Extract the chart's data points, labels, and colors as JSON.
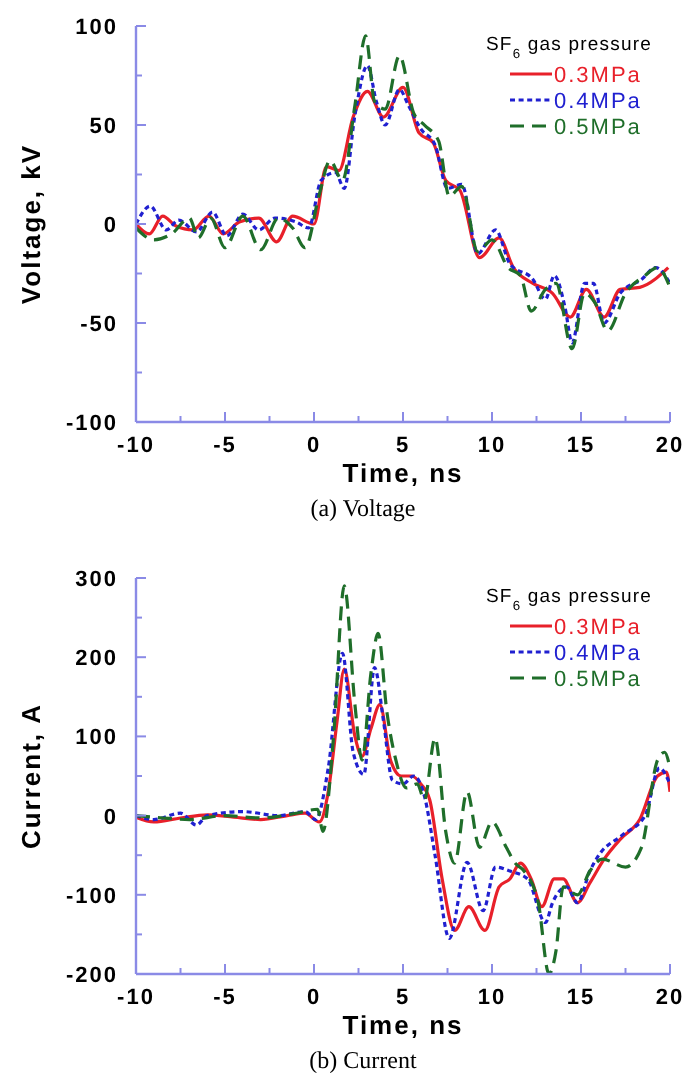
{
  "chart_data": [
    {
      "type": "line",
      "xlabel": "Time, ns",
      "ylabel": "Voltage, kV",
      "legend_title": "SF$_{6}$ gas pressure",
      "legend": "top right",
      "annotations": [
        "(a) Voltage"
      ],
      "xlim": [
        -10,
        20
      ],
      "ylim": [
        -100,
        100
      ],
      "xticks": [
        -10,
        {
          "value": -7.5,
          "label": null
        },
        -5,
        {
          "value": -2.5,
          "label": null
        },
        0,
        {
          "value": 2.5,
          "label": null
        },
        5,
        {
          "value": 7.5,
          "label": null
        },
        10,
        {
          "value": 12.5,
          "label": null
        },
        15,
        {
          "value": 17.5,
          "label": null
        },
        20
      ],
      "yticks": [
        -100,
        {
          "value": -75,
          "label": null
        },
        -50,
        {
          "value": -25,
          "label": null
        },
        0,
        {
          "value": 25,
          "label": null
        },
        50,
        {
          "value": 75,
          "label": null
        },
        100
      ],
      "series": [
        {
          "name": "0.3MPa",
          "color": "#e8202a",
          "line_style": "solid",
          "x": [
            -10,
            -9.25,
            -8.5,
            -7.75,
            -6.8,
            -5.9,
            -5.1,
            -4.2,
            -3.1,
            -2.1,
            -1.2,
            0,
            0.7,
            1.4,
            2.2,
            3,
            3.9,
            5,
            5.9,
            6.7,
            7.4,
            8.2,
            9.3,
            10.4,
            11.2,
            12.3,
            13.4,
            14.4,
            15.3,
            16.3,
            17.2,
            18.3,
            19.9
          ],
          "values": [
            0,
            -5,
            4,
            -1,
            -3,
            4,
            -5,
            1,
            3,
            -9,
            4,
            0,
            29,
            27,
            54,
            67,
            54,
            69,
            46,
            41,
            22,
            17,
            -17,
            -7,
            -22,
            -30,
            -35,
            -47,
            -33,
            -47,
            -33,
            -32,
            -22
          ]
        },
        {
          "name": "0.4MPa",
          "color": "#2020d0",
          "line_style": "dotted",
          "x": [
            -10,
            -9.2,
            -8.3,
            -7.6,
            -6.6,
            -5.7,
            -4.9,
            -4,
            -3.1,
            -2.2,
            -1,
            -0.3,
            0.4,
            1.2,
            1.7,
            2.3,
            3,
            3.5,
            4,
            4.8,
            5.3,
            6,
            6.8,
            7.5,
            8.3,
            9.2,
            10.2,
            11,
            12.3,
            13,
            13.5,
            14.1,
            14.5,
            15.2,
            15.7,
            16.3,
            17.2,
            18.4,
            19.2,
            20
          ],
          "values": [
            0,
            9,
            -3,
            2,
            -4,
            6,
            -6,
            5,
            -3,
            3,
            1,
            -2,
            22,
            26,
            18,
            55,
            80,
            62,
            50,
            68,
            60,
            48,
            40,
            18,
            20,
            -15,
            -3,
            -20,
            -28,
            -38,
            -26,
            -42,
            -60,
            -30,
            -30,
            -50,
            -35,
            -28,
            -22,
            -30
          ]
        },
        {
          "name": "0.5MPa",
          "color": "#1f6e2a",
          "line_style": "dashed",
          "x": [
            -10,
            -9,
            -8,
            -7,
            -6.5,
            -5.8,
            -5,
            -4,
            -3,
            -2,
            -1.2,
            -0.5,
            0.3,
            0.9,
            1.6,
            2.3,
            2.9,
            3.4,
            4,
            4.8,
            5.6,
            6.2,
            7,
            7.6,
            8.3,
            9.2,
            10,
            10.9,
            11.6,
            12.2,
            13,
            13.6,
            14.5,
            15.2,
            15.8,
            16.5,
            17.5,
            18.6,
            19.3,
            20
          ],
          "values": [
            -2,
            -8,
            -5,
            3,
            -7,
            3,
            -12,
            4,
            -13,
            3,
            -2,
            -12,
            15,
            32,
            22,
            60,
            95,
            62,
            58,
            85,
            56,
            50,
            42,
            14,
            19,
            -14,
            -8,
            -22,
            -26,
            -44,
            -33,
            -30,
            -63,
            -35,
            -40,
            -54,
            -35,
            -26,
            -22,
            -32
          ]
        }
      ]
    },
    {
      "type": "line",
      "xlabel": "Time, ns",
      "ylabel": "Current, A",
      "legend_title": "SF$_{6}$ gas pressure",
      "legend": "top right",
      "annotations": [
        "(b) Current"
      ],
      "xlim": [
        -10,
        20
      ],
      "ylim": [
        -200,
        300
      ],
      "xticks": [
        -10,
        {
          "value": -7.5,
          "label": null
        },
        -5,
        {
          "value": -2.5,
          "label": null
        },
        0,
        {
          "value": 2.5,
          "label": null
        },
        5,
        {
          "value": 7.5,
          "label": null
        },
        10,
        {
          "value": 12.5,
          "label": null
        },
        15,
        {
          "value": 17.5,
          "label": null
        },
        20
      ],
      "yticks": [
        -200,
        {
          "value": -150,
          "label": null
        },
        -100,
        {
          "value": -50,
          "label": null
        },
        0,
        {
          "value": 50,
          "label": null
        },
        100,
        {
          "value": 150,
          "label": null
        },
        200,
        {
          "value": 250,
          "label": null
        },
        300
      ],
      "series": [
        {
          "name": "0.3MPa",
          "color": "#e8202a",
          "line_style": "solid",
          "x": [
            -10,
            -9,
            -7.5,
            -6,
            -4.5,
            -3,
            -1.5,
            -0.5,
            0.3,
            0.8,
            1.3,
            1.7,
            2.3,
            2.7,
            3.2,
            3.7,
            4.3,
            4.9,
            5.5,
            6,
            6.5,
            7.2,
            7.9,
            8.7,
            9.6,
            10.4,
            11,
            11.6,
            12.2,
            12.8,
            13.5,
            14,
            14.8,
            15.5,
            16.3,
            17.2,
            18.3,
            19.3,
            19.8,
            20
          ],
          "values": [
            -2,
            -8,
            -3,
            1,
            -2,
            -5,
            0,
            3,
            -8,
            30,
            120,
            185,
            100,
            75,
            110,
            140,
            70,
            50,
            50,
            40,
            20,
            -80,
            -145,
            -115,
            -145,
            -90,
            -80,
            -60,
            -80,
            -115,
            -80,
            -80,
            -110,
            -85,
            -55,
            -30,
            -5,
            50,
            55,
            30
          ]
        },
        {
          "name": "0.4MPa",
          "color": "#2020d0",
          "line_style": "dotted",
          "x": [
            -10,
            -9,
            -7.5,
            -6.6,
            -6,
            -4,
            -2,
            -0.5,
            0.1,
            0.8,
            1.6,
            2.2,
            2.8,
            3.4,
            3.9,
            4.4,
            5,
            5.6,
            6.2,
            6.8,
            7.6,
            8.6,
            9.5,
            10.2,
            11,
            12,
            13,
            13.4,
            14.2,
            14.8,
            15.5,
            16,
            17.3,
            18.6,
            19.4,
            20
          ],
          "values": [
            0,
            -5,
            3,
            -12,
            0,
            5,
            0,
            5,
            -5,
            60,
            205,
            80,
            52,
            187,
            120,
            45,
            40,
            50,
            25,
            -50,
            -155,
            -59,
            -120,
            -65,
            -70,
            -80,
            -135,
            -110,
            -90,
            -110,
            -70,
            -50,
            -25,
            0,
            60,
            40
          ]
        },
        {
          "name": "0.5MPa",
          "color": "#1f6e2a",
          "line_style": "dashed",
          "x": [
            -10,
            -8.5,
            -7,
            -5,
            -3,
            -1,
            0.2,
            0.5,
            1.1,
            1.7,
            2.3,
            2.7,
            3.2,
            3.6,
            4.1,
            4.6,
            5.2,
            5.8,
            6.2,
            6.8,
            7.4,
            7.9,
            8.6,
            9.3,
            10,
            10.8,
            11.3,
            11.8,
            12.6,
            13.2,
            13.6,
            14,
            14.8,
            15.5,
            16.2,
            17.5,
            18.4,
            19.3,
            19.7,
            20
          ],
          "values": [
            0,
            -3,
            -5,
            0,
            -3,
            3,
            8,
            -20,
            100,
            290,
            140,
            70,
            180,
            230,
            130,
            70,
            35,
            40,
            20,
            98,
            -20,
            -60,
            30,
            -40,
            -8,
            -40,
            -60,
            -70,
            -110,
            -200,
            -170,
            -90,
            -100,
            -70,
            -55,
            -65,
            -40,
            70,
            80,
            60
          ]
        }
      ]
    }
  ]
}
